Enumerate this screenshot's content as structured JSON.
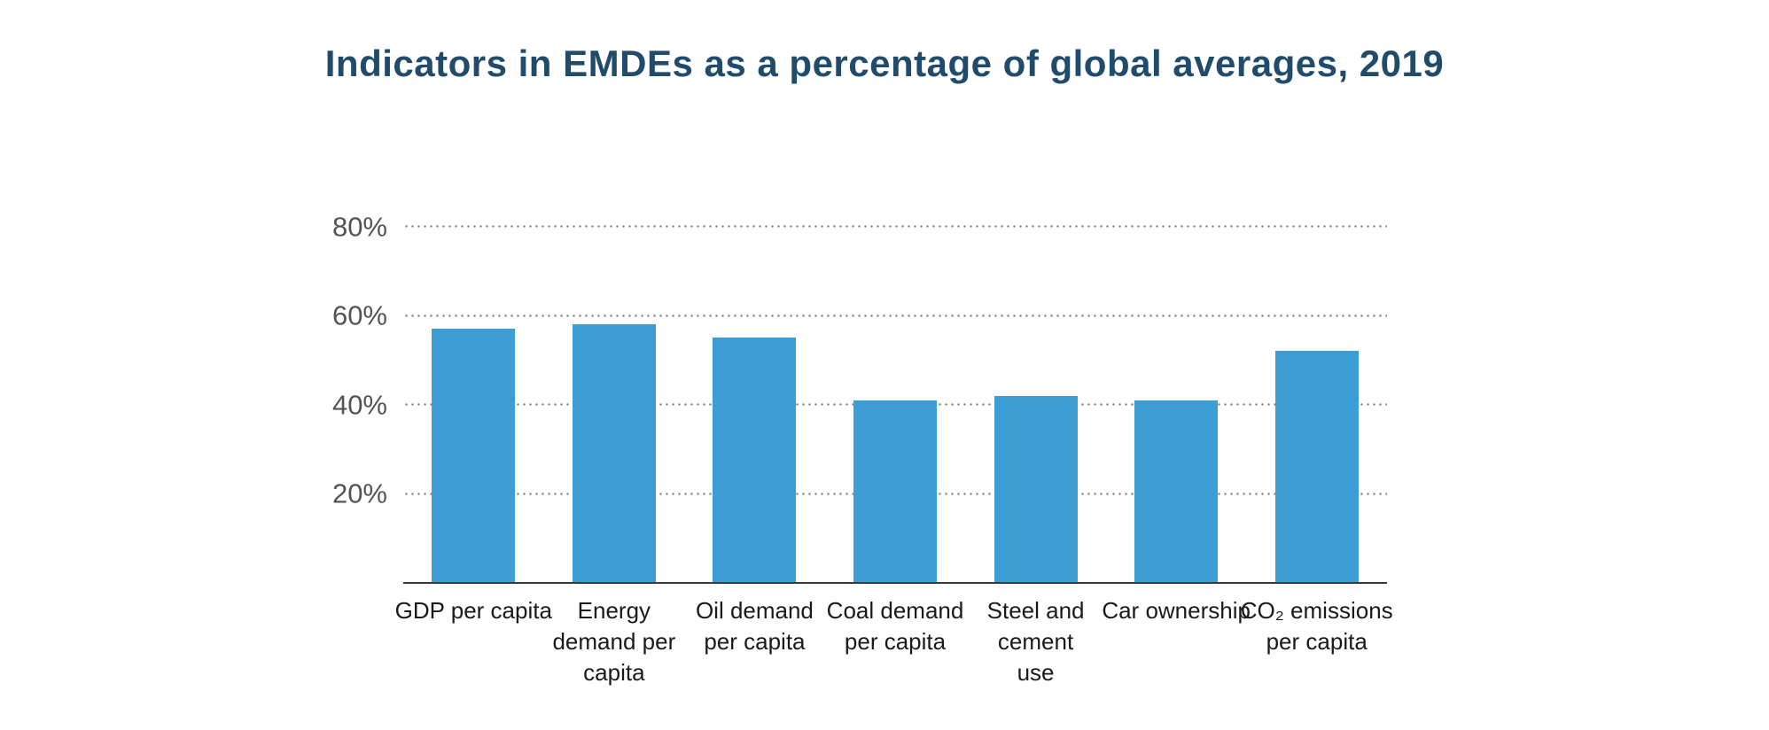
{
  "title": "Indicators in EMDEs as a percentage of global averages, 2019",
  "chart_data": {
    "type": "bar",
    "title": "Indicators in EMDEs as a percentage of global averages, 2019",
    "categories": [
      "GDP per capita",
      "Energy demand per capita",
      "Oil demand per capita",
      "Coal demand per capita",
      "Steel and cement use",
      "Car ownership",
      "CO₂ emissions per capita"
    ],
    "category_lines": [
      [
        "GDP per capita"
      ],
      [
        "Energy",
        "demand per",
        "capita"
      ],
      [
        "Oil demand",
        "per capita"
      ],
      [
        "Coal demand",
        "per capita"
      ],
      [
        "Steel and",
        "cement",
        "use"
      ],
      [
        "Car ownership"
      ],
      [
        "CO₂ emissions",
        "per capita"
      ]
    ],
    "values": [
      57,
      58,
      55,
      41,
      42,
      41,
      52
    ],
    "unit": "%",
    "y_ticks": [
      "20%",
      "40%",
      "60%",
      "80%"
    ],
    "y_tick_values": [
      20,
      40,
      60,
      80
    ],
    "ylim": [
      0,
      100
    ],
    "grid": "dotted horizontal gridlines",
    "legend": "none",
    "xlabel": "",
    "ylabel": "",
    "colors": {
      "bar": "#3d9dd5",
      "title": "#214b6b",
      "y_tick_label": "#545456",
      "gridline": "#8a8a8a",
      "axis_line": "#3a3a3a",
      "x_tick_label": "#1a1a1a",
      "background": "#ffffff"
    }
  }
}
